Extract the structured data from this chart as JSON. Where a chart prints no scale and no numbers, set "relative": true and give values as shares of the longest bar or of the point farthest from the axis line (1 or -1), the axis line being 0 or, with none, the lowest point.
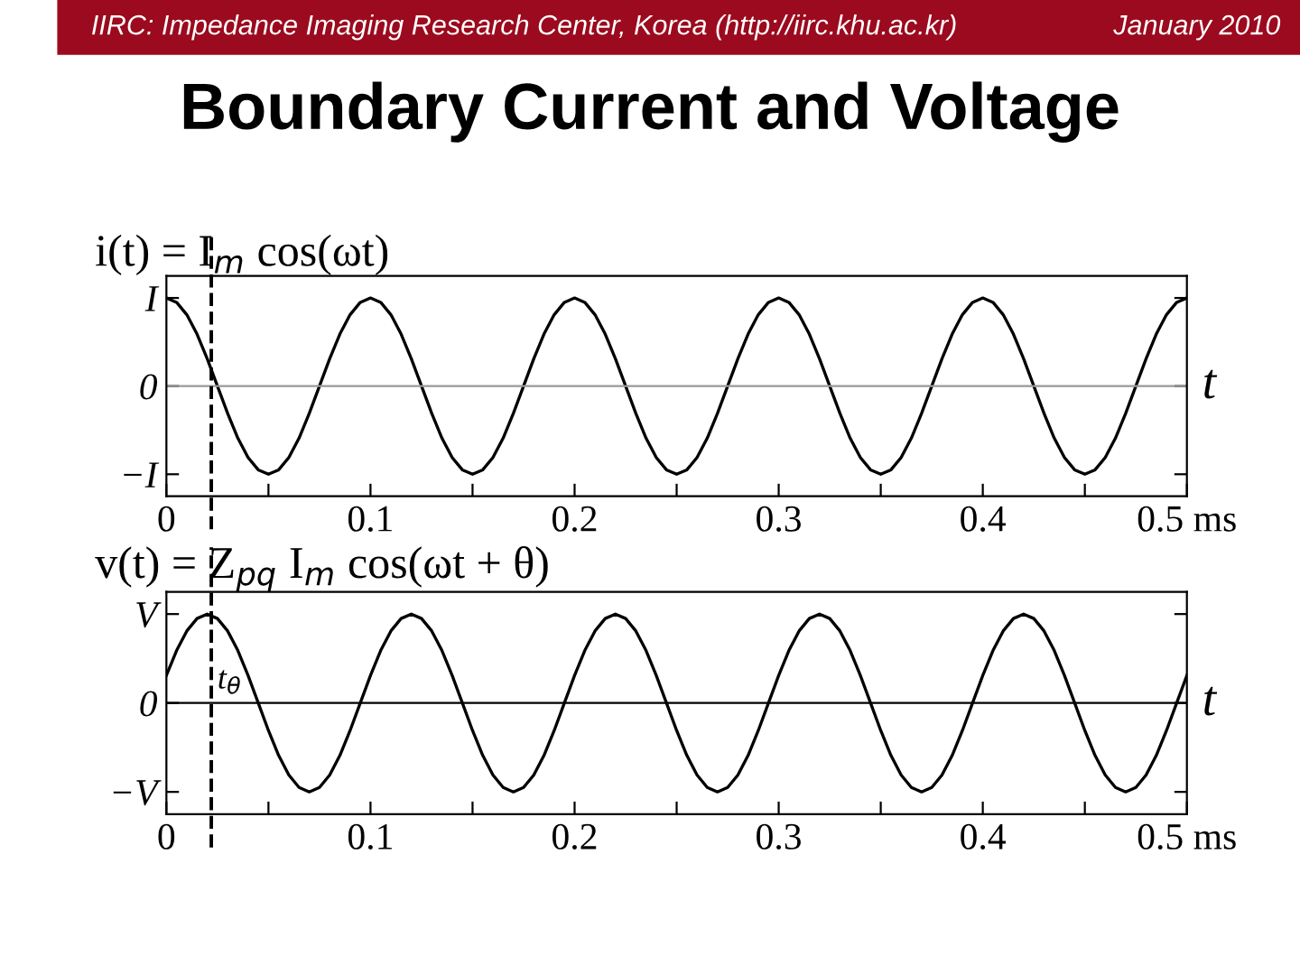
{
  "chart_data": [
    {
      "type": "line",
      "title": "i(t) = I$_{m}$ cos(ωt)",
      "xlabel": "t",
      "annotations": [
        "I",
        "0",
        "−I",
        "IIRC: Impedance Imaging Research Center, Korea (http://iirc.khu.ac.kr)",
        "January 2010",
        "Boundary Current and Voltage"
      ],
      "relative": true,
      "x": [
        0,
        0.005,
        0.01,
        0.015,
        0.02,
        0.025,
        0.03,
        0.035,
        0.04,
        0.045,
        0.05,
        0.055,
        0.06,
        0.065,
        0.07,
        0.075,
        0.08,
        0.085,
        0.09,
        0.095,
        0.1,
        0.105,
        0.11,
        0.115,
        0.12,
        0.125,
        0.13,
        0.135,
        0.14,
        0.145,
        0.15,
        0.155,
        0.16,
        0.165,
        0.17,
        0.175,
        0.18,
        0.185,
        0.19,
        0.195,
        0.2,
        0.205,
        0.21,
        0.215,
        0.22,
        0.225,
        0.23,
        0.235,
        0.24,
        0.245,
        0.25,
        0.255,
        0.26,
        0.265,
        0.27,
        0.275,
        0.28,
        0.285,
        0.29,
        0.295,
        0.3,
        0.305,
        0.31,
        0.315,
        0.32,
        0.325,
        0.33,
        0.335,
        0.34,
        0.345,
        0.35,
        0.355,
        0.36,
        0.365,
        0.37,
        0.375,
        0.38,
        0.385,
        0.39,
        0.395,
        0.4,
        0.405,
        0.41,
        0.415,
        0.42,
        0.425,
        0.43,
        0.435,
        0.44,
        0.445,
        0.45,
        0.455,
        0.46,
        0.465,
        0.47,
        0.475,
        0.48,
        0.485,
        0.49,
        0.495,
        0.5
      ],
      "series": [
        {
          "color": "#000000",
          "values": [
            1,
            0.95,
            0.81,
            0.59,
            0.31,
            0,
            -0.31,
            -0.59,
            -0.81,
            -0.95,
            -1,
            -0.95,
            -0.81,
            -0.59,
            -0.31,
            0,
            0.31,
            0.59,
            0.81,
            0.95,
            1,
            0.95,
            0.81,
            0.59,
            0.31,
            0,
            -0.31,
            -0.59,
            -0.81,
            -0.95,
            -1,
            -0.95,
            -0.81,
            -0.59,
            -0.31,
            0,
            0.31,
            0.59,
            0.81,
            0.95,
            1,
            0.95,
            0.81,
            0.59,
            0.31,
            0,
            -0.31,
            -0.59,
            -0.81,
            -0.95,
            -1,
            -0.95,
            -0.81,
            -0.59,
            -0.31,
            0,
            0.31,
            0.59,
            0.81,
            0.95,
            1,
            0.95,
            0.81,
            0.59,
            0.31,
            0,
            -0.31,
            -0.59,
            -0.81,
            -0.95,
            -1,
            -0.95,
            -0.81,
            -0.59,
            -0.31,
            0,
            0.31,
            0.59,
            0.81,
            0.95,
            1,
            0.95,
            0.81,
            0.59,
            0.31,
            0,
            -0.31,
            -0.59,
            -0.81,
            -0.95,
            -1,
            -0.95,
            -0.81,
            -0.59,
            -0.31,
            0,
            0.31,
            0.59,
            0.81,
            0.95,
            1
          ]
        }
      ],
      "xlim": [
        0,
        0.5
      ],
      "xticks": [
        0,
        {
          "value": 0.05,
          "label": null
        },
        0.1,
        {
          "value": 0.15,
          "label": null
        },
        0.2,
        {
          "value": 0.25,
          "label": null
        },
        0.3,
        {
          "value": 0.35,
          "label": null
        },
        0.4,
        {
          "value": 0.45,
          "label": null
        },
        {
          "value": 0.5,
          "label": "0.5 ms"
        }
      ],
      "ref_lines": [
        {
          "axis": "y",
          "value": 0,
          "color": "#999999",
          "line_style": "solid"
        },
        {
          "axis": "x",
          "value": 0.022,
          "color": "#000000",
          "line_style": "dashed"
        }
      ],
      "grid": false,
      "legend": false,
      "marker": "none",
      "line_style": "solid"
    },
    {
      "type": "line",
      "title": "v(t) = Z$_{pq}$ I$_{m}$ cos(ωt + θ)",
      "xlabel": "t",
      "annotations": [
        "V",
        "0",
        "−V"
      ],
      "relative": true,
      "x": [
        0,
        0.005,
        0.01,
        0.015,
        0.02,
        0.025,
        0.03,
        0.035,
        0.04,
        0.045,
        0.05,
        0.055,
        0.06,
        0.065,
        0.07,
        0.075,
        0.08,
        0.085,
        0.09,
        0.095,
        0.1,
        0.105,
        0.11,
        0.115,
        0.12,
        0.125,
        0.13,
        0.135,
        0.14,
        0.145,
        0.15,
        0.155,
        0.16,
        0.165,
        0.17,
        0.175,
        0.18,
        0.185,
        0.19,
        0.195,
        0.2,
        0.205,
        0.21,
        0.215,
        0.22,
        0.225,
        0.23,
        0.235,
        0.24,
        0.245,
        0.25,
        0.255,
        0.26,
        0.265,
        0.27,
        0.275,
        0.28,
        0.285,
        0.29,
        0.295,
        0.3,
        0.305,
        0.31,
        0.315,
        0.32,
        0.325,
        0.33,
        0.335,
        0.34,
        0.345,
        0.35,
        0.355,
        0.36,
        0.365,
        0.37,
        0.375,
        0.38,
        0.385,
        0.39,
        0.395,
        0.4,
        0.405,
        0.41,
        0.415,
        0.42,
        0.425,
        0.43,
        0.435,
        0.44,
        0.445,
        0.45,
        0.455,
        0.46,
        0.465,
        0.47,
        0.475,
        0.48,
        0.485,
        0.49,
        0.495,
        0.5
      ],
      "series": [
        {
          "color": "#000000",
          "values": [
            0.31,
            0.59,
            0.81,
            0.95,
            1,
            0.95,
            0.81,
            0.59,
            0.31,
            0,
            -0.31,
            -0.59,
            -0.81,
            -0.95,
            -1,
            -0.95,
            -0.81,
            -0.59,
            -0.31,
            0,
            0.31,
            0.59,
            0.81,
            0.95,
            1,
            0.95,
            0.81,
            0.59,
            0.31,
            0,
            -0.31,
            -0.59,
            -0.81,
            -0.95,
            -1,
            -0.95,
            -0.81,
            -0.59,
            -0.31,
            0,
            0.31,
            0.59,
            0.81,
            0.95,
            1,
            0.95,
            0.81,
            0.59,
            0.31,
            0,
            -0.31,
            -0.59,
            -0.81,
            -0.95,
            -1,
            -0.95,
            -0.81,
            -0.59,
            -0.31,
            0,
            0.31,
            0.59,
            0.81,
            0.95,
            1,
            0.95,
            0.81,
            0.59,
            0.31,
            0,
            -0.31,
            -0.59,
            -0.81,
            -0.95,
            -1,
            -0.95,
            -0.81,
            -0.59,
            -0.31,
            0,
            0.31,
            0.59,
            0.81,
            0.95,
            1,
            0.95,
            0.81,
            0.59,
            0.31,
            0,
            -0.31,
            -0.59,
            -0.81,
            -0.95,
            -1,
            -0.95,
            -0.81,
            -0.59,
            -0.31,
            0,
            0.31
          ]
        }
      ],
      "xlim": [
        0,
        0.5
      ],
      "xticks": [
        0,
        {
          "value": 0.05,
          "label": null
        },
        0.1,
        {
          "value": 0.15,
          "label": null
        },
        0.2,
        {
          "value": 0.25,
          "label": null
        },
        0.3,
        {
          "value": 0.35,
          "label": null
        },
        0.4,
        {
          "value": 0.45,
          "label": null
        },
        {
          "value": 0.5,
          "label": "0.5 ms"
        }
      ],
      "ref_lines": [
        {
          "axis": "y",
          "value": 0,
          "color": "#000000",
          "line_style": "solid"
        },
        {
          "axis": "x",
          "value": 0.022,
          "label": "t$_{θ}$",
          "color": "#000000",
          "line_style": "dashed"
        }
      ],
      "grid": false,
      "legend": false,
      "marker": "none",
      "line_style": "solid"
    }
  ]
}
